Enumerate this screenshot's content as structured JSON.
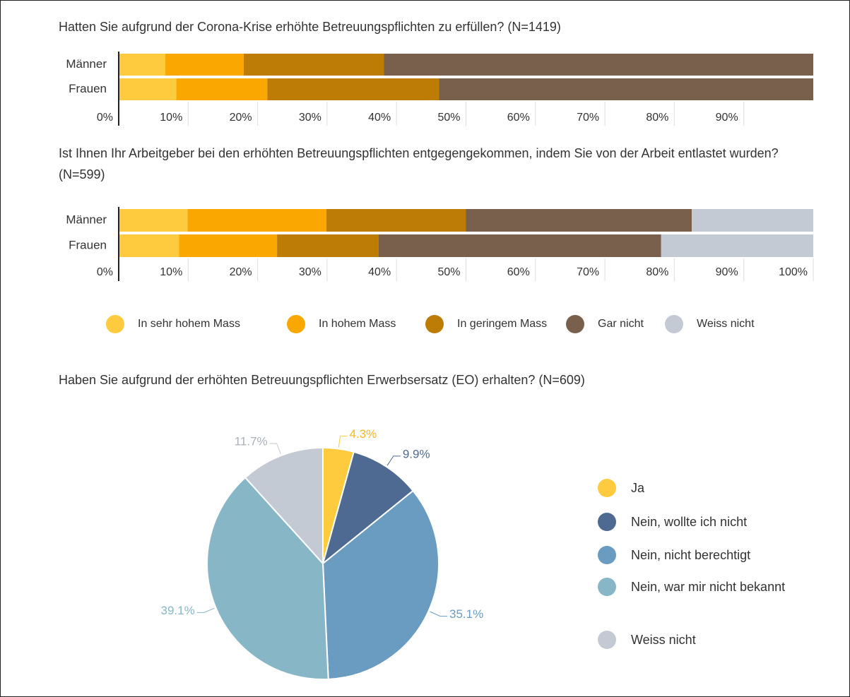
{
  "chart_data": [
    {
      "type": "stacked-bar-horizontal",
      "title": "Hatten Sie aufgrund der Corona-Krise erhöhte Betreuungspflichten zu erfüllen? (N=1419)",
      "categories": [
        "Männer",
        "Frauen"
      ],
      "series": [
        {
          "color": "#fecb3e",
          "values": [
            6.7,
            8.3
          ]
        },
        {
          "color": "#fba702",
          "values": [
            11.3,
            13.1
          ]
        },
        {
          "color": "#bc7c05",
          "values": [
            20.2,
            24.7
          ]
        },
        {
          "color": "#78604c",
          "values": [
            61.8,
            53.9
          ]
        }
      ],
      "xlim": [
        0,
        100
      ],
      "xticks": [
        {
          "value": 0,
          "label": "0%"
        },
        {
          "value": 10,
          "label": "10%"
        },
        {
          "value": 20,
          "label": "20%"
        },
        {
          "value": 30,
          "label": "30%"
        },
        {
          "value": 40,
          "label": "40%"
        },
        {
          "value": 50,
          "label": "50%"
        },
        {
          "value": 60,
          "label": "60%"
        },
        {
          "value": 70,
          "label": "70%"
        },
        {
          "value": 80,
          "label": "80%"
        },
        {
          "value": 90,
          "label": "90%"
        }
      ]
    },
    {
      "type": "stacked-bar-horizontal",
      "title": "Ist Ihnen Ihr Arbeitgeber bei den erhöhten Betreuungspflichten entgegengekommen, indem Sie von der Arbeit entlastet wurden? (N=599)",
      "categories": [
        "Männer",
        "Frauen"
      ],
      "series": [
        {
          "name": "In sehr hohem Mass",
          "color": "#fecb3e",
          "values": [
            9.9,
            8.7
          ]
        },
        {
          "name": "In hohem Mass",
          "color": "#fba702",
          "values": [
            20.0,
            14.1
          ]
        },
        {
          "name": "In geringem Mass",
          "color": "#bc7c05",
          "values": [
            20.1,
            14.6
          ]
        },
        {
          "name": "Gar nicht",
          "color": "#78604c",
          "values": [
            32.5,
            40.7
          ]
        },
        {
          "name": "Weiss nicht",
          "color": "#c4cad3",
          "values": [
            17.5,
            21.9
          ]
        }
      ],
      "xlim": [
        0,
        100
      ],
      "xticks": [
        {
          "value": 0,
          "label": "0%"
        },
        {
          "value": 10,
          "label": "10%"
        },
        {
          "value": 20,
          "label": "20%"
        },
        {
          "value": 30,
          "label": "30%"
        },
        {
          "value": 40,
          "label": "40%"
        },
        {
          "value": 50,
          "label": "50%"
        },
        {
          "value": 60,
          "label": "60%"
        },
        {
          "value": 70,
          "label": "70%"
        },
        {
          "value": 80,
          "label": "80%"
        },
        {
          "value": 90,
          "label": "90%"
        },
        {
          "value": 100,
          "label": "100%"
        }
      ],
      "legend": "bottom"
    },
    {
      "type": "pie",
      "title": "Haben Sie aufgrund der erhöhten Betreuungspflichten Erwerbsersatz (EO) erhalten? (N=609)",
      "categories": [
        "Ja",
        "Nein, wollte ich nicht",
        "Nein, nicht berechtigt",
        "Nein, war mir nicht bekannt",
        "Weiss nicht"
      ],
      "values": [
        4.3,
        9.9,
        35.1,
        39.1,
        11.7
      ],
      "value_labels": [
        "4.3%",
        "9.9%",
        "35.1%",
        "39.1%",
        "11.7%"
      ],
      "colors": [
        "#fecb3e",
        "#4e6a93",
        "#6a9bc0",
        "#87b7c6",
        "#c4cad3"
      ],
      "legend": "right"
    }
  ]
}
